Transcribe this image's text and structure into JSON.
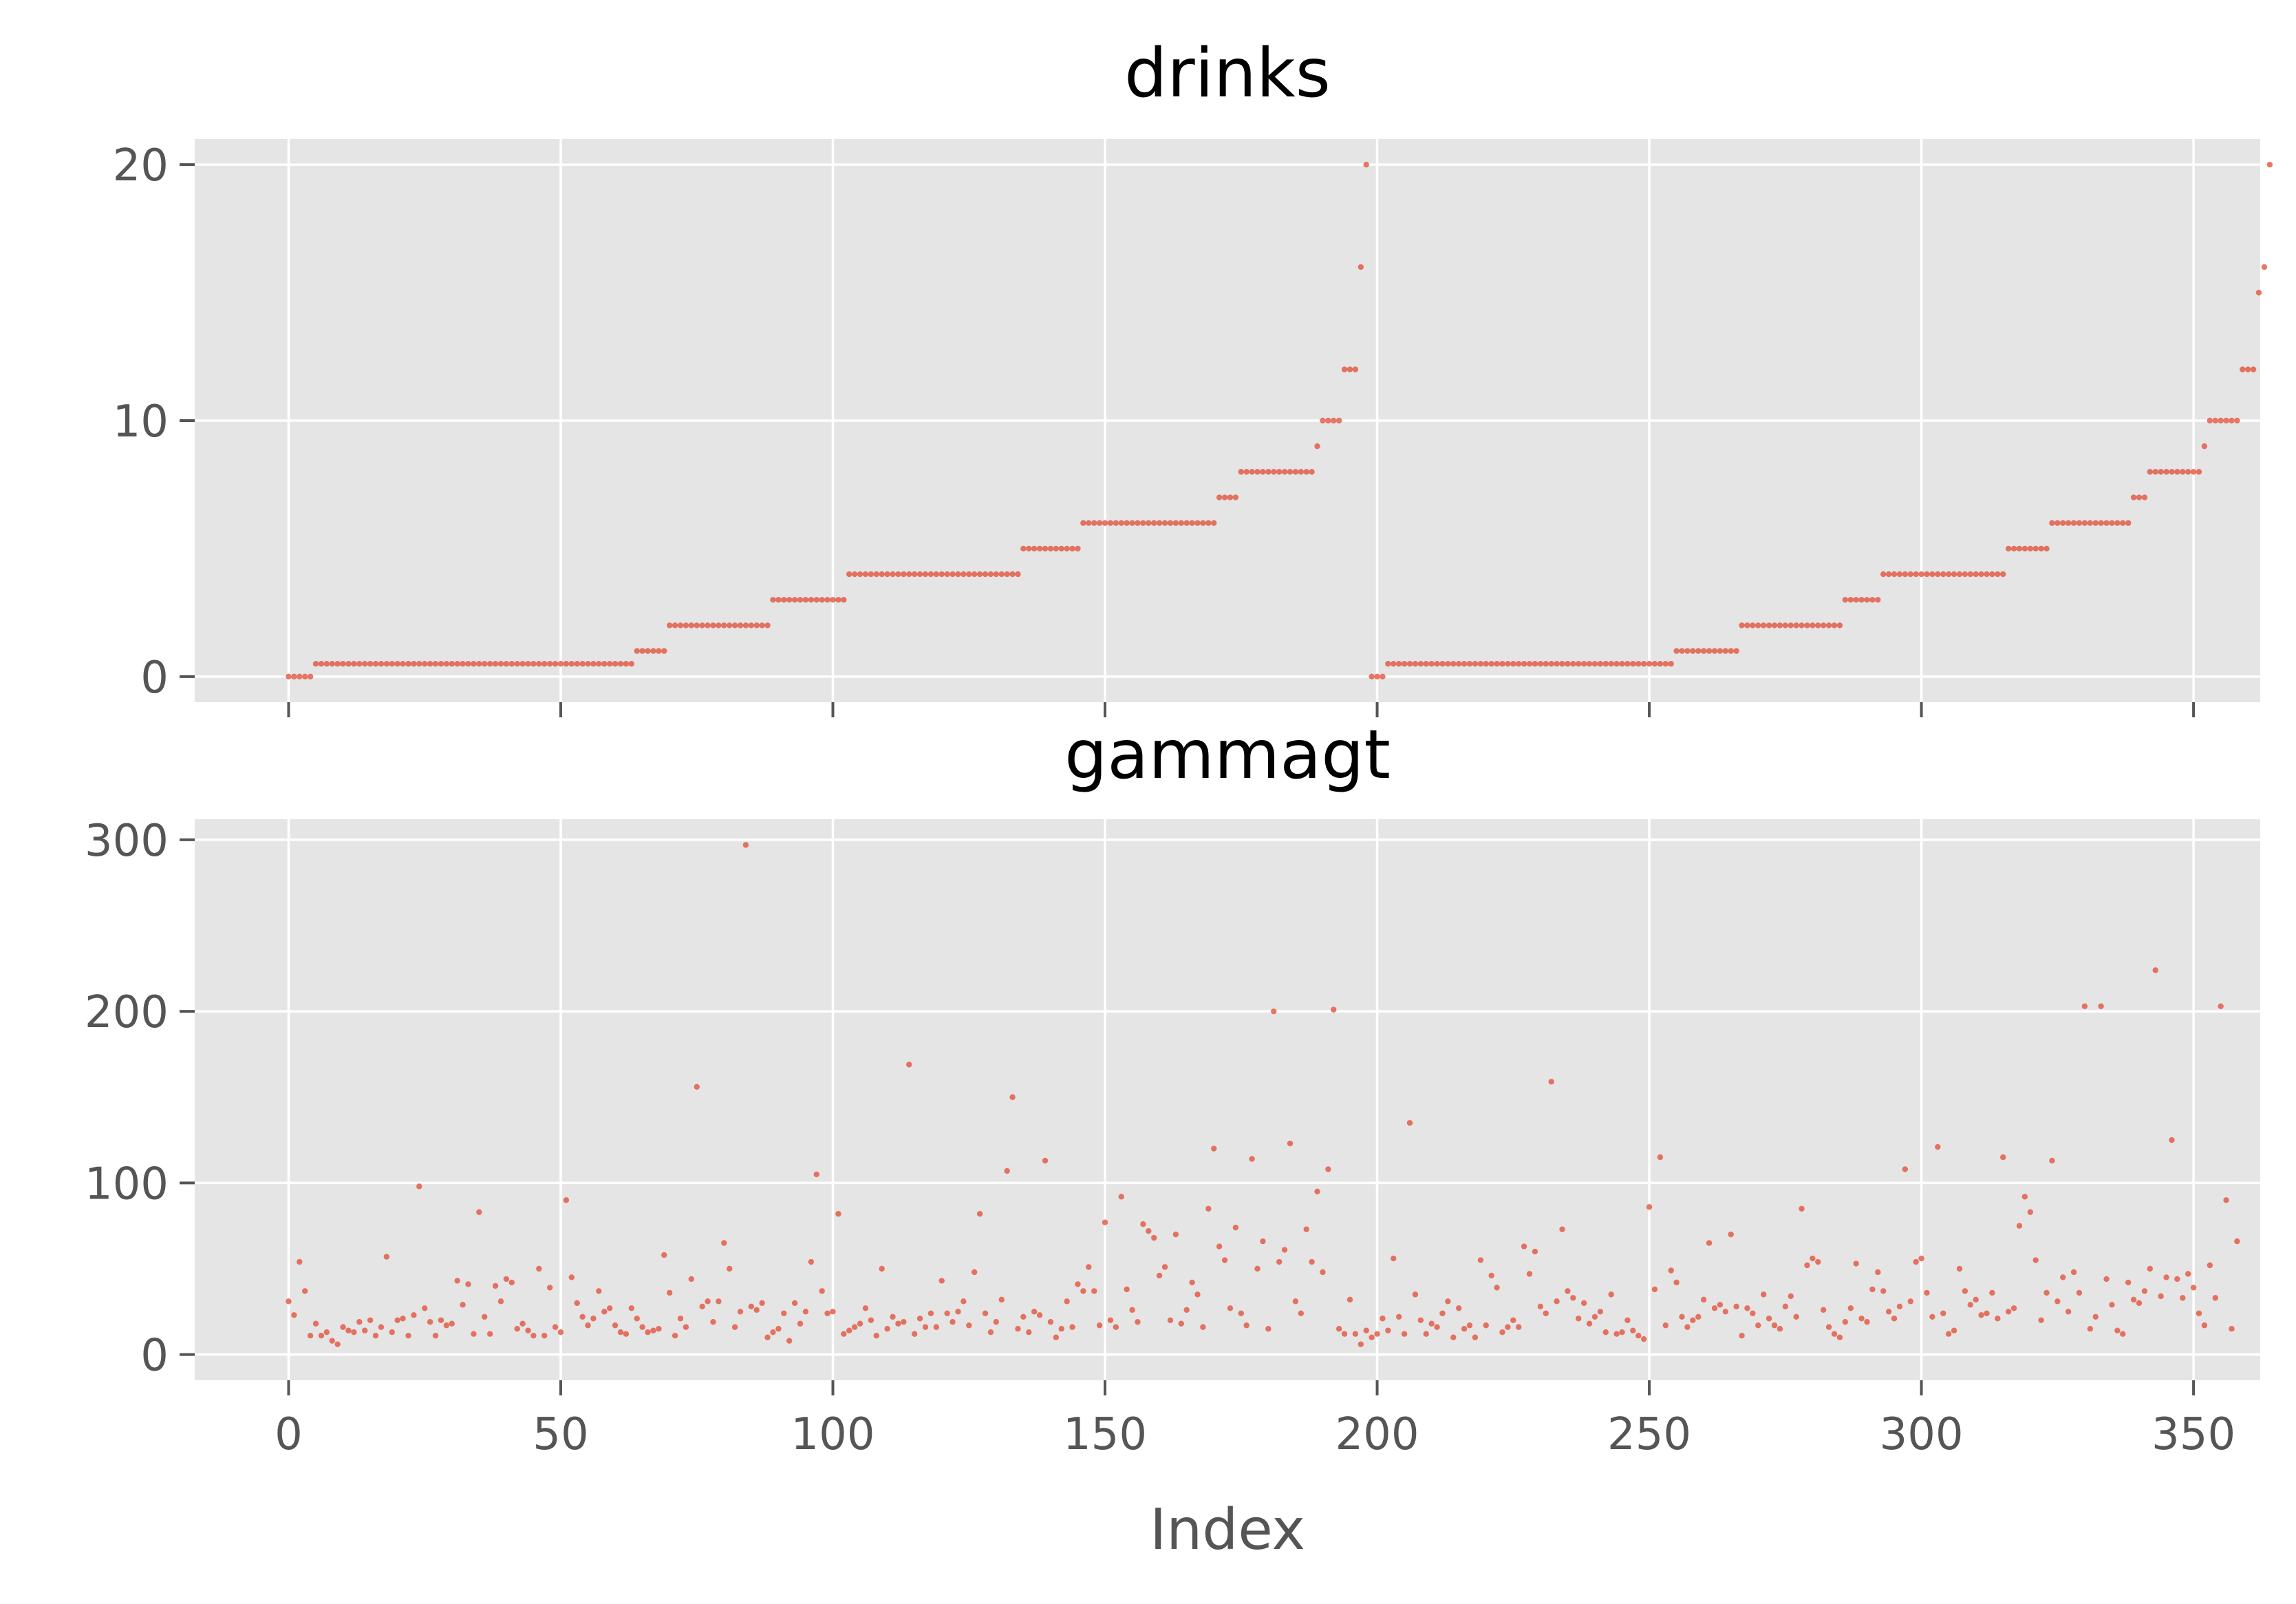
{
  "chart_data": [
    {
      "type": "scatter",
      "title": "drinks",
      "xlabel": "",
      "ylabel": "",
      "xlim": [
        -17.25,
        362.25
      ],
      "ylim": [
        -1,
        21
      ],
      "xticks": [
        0,
        50,
        100,
        150,
        200,
        250,
        300,
        350
      ],
      "show_xtick_labels": false,
      "yticks": [
        0,
        10,
        20
      ],
      "ytick_labels": [
        "0",
        "10",
        "20"
      ],
      "grid": true,
      "color": "#e24a33",
      "series": [
        {
          "name": "",
          "y": [
            0,
            0,
            0,
            0,
            0,
            0.5,
            0.5,
            0.5,
            0.5,
            0.5,
            0.5,
            0.5,
            0.5,
            0.5,
            0.5,
            0.5,
            0.5,
            0.5,
            0.5,
            0.5,
            0.5,
            0.5,
            0.5,
            0.5,
            0.5,
            0.5,
            0.5,
            0.5,
            0.5,
            0.5,
            0.5,
            0.5,
            0.5,
            0.5,
            0.5,
            0.5,
            0.5,
            0.5,
            0.5,
            0.5,
            0.5,
            0.5,
            0.5,
            0.5,
            0.5,
            0.5,
            0.5,
            0.5,
            0.5,
            0.5,
            0.5,
            0.5,
            0.5,
            0.5,
            0.5,
            0.5,
            0.5,
            0.5,
            0.5,
            0.5,
            0.5,
            0.5,
            0.5,
            0.5,
            1,
            1,
            1,
            1,
            1,
            1,
            2,
            2,
            2,
            2,
            2,
            2,
            2,
            2,
            2,
            2,
            2,
            2,
            2,
            2,
            2,
            2,
            2,
            2,
            2,
            3,
            3,
            3,
            3,
            3,
            3,
            3,
            3,
            3,
            3,
            3,
            3,
            3,
            3,
            4,
            4,
            4,
            4,
            4,
            4,
            4,
            4,
            4,
            4,
            4,
            4,
            4,
            4,
            4,
            4,
            4,
            4,
            4,
            4,
            4,
            4,
            4,
            4,
            4,
            4,
            4,
            4,
            4,
            4,
            4,
            4,
            5,
            5,
            5,
            5,
            5,
            5,
            5,
            5,
            5,
            5,
            5,
            6,
            6,
            6,
            6,
            6,
            6,
            6,
            6,
            6,
            6,
            6,
            6,
            6,
            6,
            6,
            6,
            6,
            6,
            6,
            6,
            6,
            6,
            6,
            6,
            6,
            7,
            7,
            7,
            7,
            8,
            8,
            8,
            8,
            8,
            8,
            8,
            8,
            8,
            8,
            8,
            8,
            8,
            8,
            9,
            10,
            10,
            10,
            10,
            12,
            12,
            12,
            16,
            20,
            0,
            0,
            0,
            0.5,
            0.5,
            0.5,
            0.5,
            0.5,
            0.5,
            0.5,
            0.5,
            0.5,
            0.5,
            0.5,
            0.5,
            0.5,
            0.5,
            0.5,
            0.5,
            0.5,
            0.5,
            0.5,
            0.5,
            0.5,
            0.5,
            0.5,
            0.5,
            0.5,
            0.5,
            0.5,
            0.5,
            0.5,
            0.5,
            0.5,
            0.5,
            0.5,
            0.5,
            0.5,
            0.5,
            0.5,
            0.5,
            0.5,
            0.5,
            0.5,
            0.5,
            0.5,
            0.5,
            0.5,
            0.5,
            0.5,
            0.5,
            0.5,
            0.5,
            0.5,
            0.5,
            0.5,
            1,
            1,
            1,
            1,
            1,
            1,
            1,
            1,
            1,
            1,
            1,
            1,
            2,
            2,
            2,
            2,
            2,
            2,
            2,
            2,
            2,
            2,
            2,
            2,
            2,
            2,
            2,
            2,
            2,
            2,
            2,
            3,
            3,
            3,
            3,
            3,
            3,
            3,
            4,
            4,
            4,
            4,
            4,
            4,
            4,
            4,
            4,
            4,
            4,
            4,
            4,
            4,
            4,
            4,
            4,
            4,
            4,
            4,
            4,
            4,
            4,
            5,
            5,
            5,
            5,
            5,
            5,
            5,
            5,
            6,
            6,
            6,
            6,
            6,
            6,
            6,
            6,
            6,
            6,
            6,
            6,
            6,
            6,
            6,
            7,
            7,
            7,
            8,
            8,
            8,
            8,
            8,
            8,
            8,
            8,
            8,
            8,
            9,
            10,
            10,
            10,
            10,
            10,
            10,
            12,
            12,
            12,
            15,
            16,
            20
          ]
        }
      ]
    },
    {
      "type": "scatter",
      "title": "gammagt",
      "xlabel": "Index",
      "ylabel": "",
      "xlim": [
        -17.25,
        362.25
      ],
      "ylim": [
        -15,
        312
      ],
      "xticks": [
        0,
        50,
        100,
        150,
        200,
        250,
        300,
        350
      ],
      "xtick_labels": [
        "0",
        "50",
        "100",
        "150",
        "200",
        "250",
        "300",
        "350"
      ],
      "yticks": [
        0,
        100,
        200,
        300
      ],
      "ytick_labels": [
        "0",
        "100",
        "200",
        "300"
      ],
      "grid": true,
      "color": "#e24a33",
      "series": [
        {
          "name": "",
          "y": [
            31,
            23,
            54,
            37,
            11,
            18,
            11,
            13,
            8,
            6,
            16,
            14,
            13,
            19,
            14,
            20,
            11,
            16,
            57,
            13,
            20,
            21,
            11,
            23,
            98,
            27,
            19,
            11,
            20,
            17,
            18,
            43,
            29,
            41,
            12,
            83,
            22,
            12,
            40,
            31,
            44,
            42,
            15,
            18,
            14,
            11,
            50,
            11,
            39,
            16,
            13,
            90,
            45,
            30,
            22,
            17,
            21,
            37,
            25,
            27,
            17,
            13,
            12,
            27,
            21,
            16,
            13,
            14,
            15,
            58,
            36,
            11,
            21,
            16,
            44,
            156,
            28,
            31,
            19,
            31,
            65,
            50,
            16,
            25,
            297,
            28,
            26,
            30,
            10,
            13,
            15,
            24,
            8,
            30,
            18,
            25,
            54,
            105,
            37,
            24,
            25,
            82,
            12,
            14,
            16,
            18,
            27,
            20,
            11,
            50,
            15,
            22,
            18,
            19,
            169,
            12,
            21,
            16,
            24,
            16,
            43,
            24,
            19,
            25,
            31,
            17,
            48,
            82,
            24,
            13,
            19,
            32,
            107,
            150,
            15,
            22,
            13,
            25,
            23,
            113,
            19,
            10,
            15,
            31,
            16,
            41,
            37,
            51,
            37,
            17,
            77,
            20,
            16,
            92,
            38,
            26,
            19,
            76,
            72,
            68,
            46,
            51,
            20,
            70,
            18,
            26,
            42,
            35,
            16,
            85,
            120,
            63,
            55,
            27,
            74,
            24,
            17,
            114,
            50,
            66,
            15,
            200,
            54,
            61,
            123,
            31,
            24,
            73,
            54,
            95,
            48,
            108,
            201,
            15,
            12,
            32,
            12,
            6,
            14,
            10,
            12,
            21,
            14,
            56,
            22,
            12,
            135,
            35,
            20,
            12,
            18,
            16,
            24,
            31,
            10,
            27,
            15,
            17,
            10,
            55,
            17,
            46,
            39,
            13,
            16,
            20,
            16,
            63,
            47,
            60,
            28,
            24,
            159,
            31,
            73,
            37,
            33,
            21,
            30,
            18,
            22,
            25,
            13,
            35,
            12,
            13,
            20,
            14,
            11,
            9,
            86,
            38,
            115,
            17,
            49,
            42,
            22,
            16,
            20,
            22,
            32,
            65,
            27,
            29,
            25,
            70,
            28,
            11,
            27,
            24,
            17,
            35,
            21,
            17,
            15,
            28,
            34,
            22,
            85,
            52,
            56,
            54,
            26,
            16,
            12,
            10,
            19,
            27,
            53,
            21,
            19,
            38,
            48,
            37,
            25,
            21,
            28,
            108,
            31,
            54,
            56,
            36,
            22,
            121,
            24,
            12,
            14,
            50,
            37,
            29,
            32,
            23,
            24,
            36,
            21,
            115,
            25,
            27,
            75,
            92,
            83,
            55,
            20,
            36,
            113,
            31,
            45,
            25,
            48,
            36,
            203,
            15,
            22,
            203,
            44,
            29,
            14,
            12,
            42,
            32,
            30,
            37,
            50,
            224,
            34,
            45,
            125,
            44,
            33,
            47,
            39,
            24,
            17,
            52,
            33,
            203,
            90,
            15,
            66
          ]
        }
      ]
    }
  ]
}
